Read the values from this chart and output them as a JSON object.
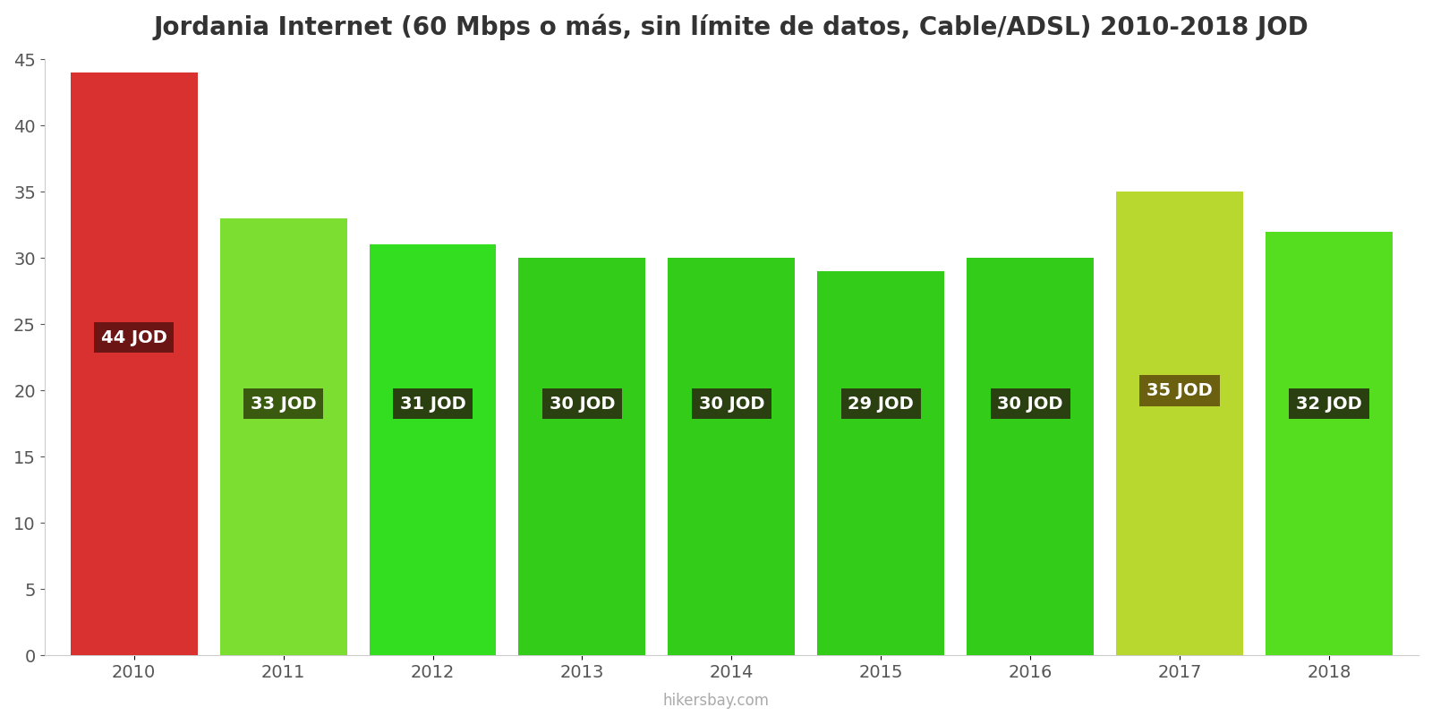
{
  "title": "Jordania Internet (60 Mbps o más, sin límite de datos, Cable/ADSL) 2010-2018 JOD",
  "years": [
    2010,
    2011,
    2012,
    2013,
    2014,
    2015,
    2016,
    2017,
    2018
  ],
  "values": [
    44,
    33,
    31,
    30,
    30,
    29,
    30,
    35,
    32
  ],
  "bar_colors": [
    "#d93030",
    "#7cde30",
    "#33dd20",
    "#33cc18",
    "#33cc18",
    "#33cc18",
    "#33cc18",
    "#b8d830",
    "#55dd20"
  ],
  "label_bg_colors": [
    "#6b1515",
    "#3a5a10",
    "#2a4010",
    "#2a4010",
    "#2a4010",
    "#2a4010",
    "#2a4010",
    "#6b6010",
    "#2a4010"
  ],
  "labels": [
    "44 JOD",
    "33 JOD",
    "31 JOD",
    "30 JOD",
    "30 JOD",
    "29 JOD",
    "30 JOD",
    "35 JOD",
    "32 JOD"
  ],
  "label_y_positions": [
    24,
    19,
    19,
    19,
    19,
    19,
    19,
    20,
    19
  ],
  "ylim": [
    0,
    45
  ],
  "yticks": [
    0,
    5,
    10,
    15,
    20,
    25,
    30,
    35,
    40,
    45
  ],
  "watermark": "hikersbay.com",
  "background_color": "#ffffff",
  "title_fontsize": 20,
  "label_fontsize": 14,
  "bar_width": 0.85
}
